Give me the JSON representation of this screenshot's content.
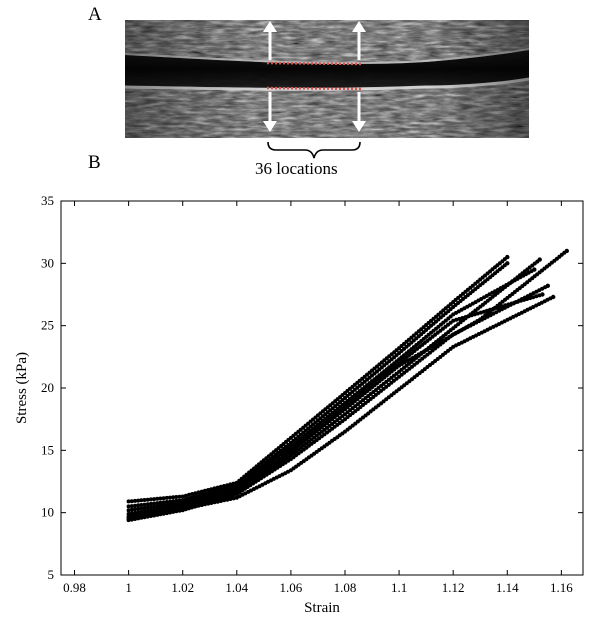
{
  "panels": {
    "a_label": "A",
    "b_label": "B"
  },
  "ultrasound": {
    "annotation": "36 locations",
    "wall_color": "#d9534f",
    "arrow_color": "#ffffff"
  },
  "chart_data": {
    "type": "scatter",
    "title": "",
    "xlabel": "Strain",
    "ylabel": "Stress (kPa)",
    "xlim": [
      0.975,
      1.168
    ],
    "ylim": [
      5,
      35
    ],
    "xticks": [
      0.98,
      1,
      1.02,
      1.04,
      1.06,
      1.08,
      1.1,
      1.12,
      1.14,
      1.16
    ],
    "yticks": [
      5,
      10,
      15,
      20,
      25,
      30,
      35
    ],
    "grid": false,
    "marker_color": "#000000",
    "series": [
      {
        "x": [
          1.0,
          1.02,
          1.04,
          1.06,
          1.08,
          1.1,
          1.12,
          1.14
        ],
        "y": [
          10.9,
          11.3,
          12.4,
          16.0,
          19.6,
          23.2,
          26.9,
          30.5
        ]
      },
      {
        "x": [
          1.0,
          1.02,
          1.04,
          1.06,
          1.08,
          1.1,
          1.12,
          1.14
        ],
        "y": [
          10.5,
          11.0,
          12.2,
          15.6,
          19.2,
          22.8,
          26.5,
          30.0
        ]
      },
      {
        "x": [
          1.0,
          1.02,
          1.04,
          1.06,
          1.08,
          1.1,
          1.12,
          1.15
        ],
        "y": [
          10.2,
          10.8,
          12.0,
          15.3,
          18.8,
          22.3,
          25.9,
          29.5
        ]
      },
      {
        "x": [
          1.0,
          1.02,
          1.04,
          1.06,
          1.08,
          1.1,
          1.13,
          1.162
        ],
        "y": [
          9.9,
          10.6,
          11.8,
          14.9,
          18.3,
          21.8,
          25.5,
          31.0
        ]
      },
      {
        "x": [
          1.0,
          1.02,
          1.04,
          1.06,
          1.08,
          1.1,
          1.12,
          1.152
        ],
        "y": [
          9.6,
          10.4,
          11.6,
          14.6,
          17.9,
          21.3,
          24.8,
          30.3
        ]
      },
      {
        "x": [
          1.0,
          1.02,
          1.04,
          1.06,
          1.08,
          1.1,
          1.12,
          1.155
        ],
        "y": [
          9.4,
          10.2,
          11.5,
          14.3,
          17.5,
          20.9,
          24.3,
          28.2
        ]
      },
      {
        "x": [
          1.0,
          1.02,
          1.04,
          1.06,
          1.08,
          1.1,
          1.12,
          1.153
        ],
        "y": [
          9.7,
          10.5,
          11.7,
          15.0,
          18.5,
          22.0,
          25.4,
          27.5
        ]
      },
      {
        "x": [
          1.0,
          1.02,
          1.04,
          1.06,
          1.08,
          1.1,
          1.12,
          1.157
        ],
        "y": [
          9.5,
          10.3,
          11.2,
          13.4,
          16.5,
          19.9,
          23.3,
          27.3
        ]
      }
    ]
  }
}
